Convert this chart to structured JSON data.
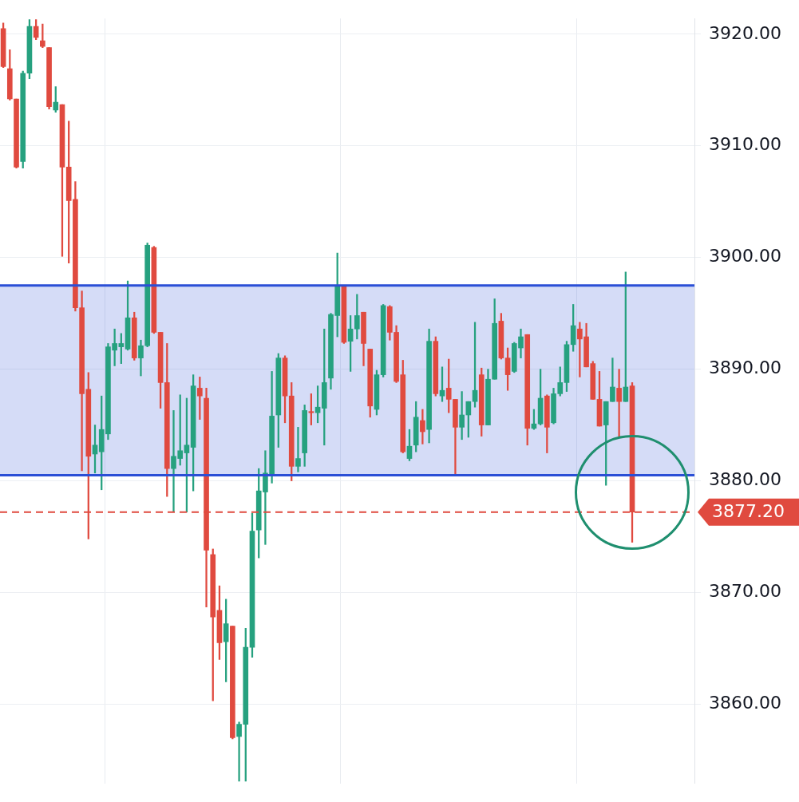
{
  "chart_data": {
    "type": "candlestick",
    "categories": [
      null,
      null,
      null,
      null,
      null,
      null,
      null,
      null,
      null,
      null,
      null,
      null,
      null,
      null,
      null,
      null,
      null,
      null,
      null,
      null,
      null,
      null,
      null,
      null,
      null,
      null,
      null,
      null,
      null,
      null,
      null,
      null,
      null,
      null,
      null,
      null,
      null,
      null,
      null,
      null,
      null,
      null,
      null,
      null,
      null,
      null,
      null,
      null,
      null,
      null,
      null,
      null,
      null,
      null,
      null,
      null,
      null,
      null,
      null,
      null,
      null,
      null,
      null,
      null,
      null,
      null,
      null,
      null,
      null,
      null,
      null,
      null,
      null,
      null,
      null,
      null,
      null,
      null,
      null,
      null,
      null,
      null,
      null,
      null,
      null,
      null,
      null,
      null,
      null,
      null,
      null,
      null,
      null,
      null,
      null,
      null,
      null,
      null,
      null,
      null,
      null,
      null,
      null,
      null,
      null,
      null
    ],
    "ohlc": [
      [
        3920.5,
        3921.0,
        3917.0,
        3917.1
      ],
      [
        3916.9,
        3918.6,
        3914.1,
        3914.2
      ],
      [
        3914.2,
        3914.2,
        3908.0,
        3908.1
      ],
      [
        3908.6,
        3916.7,
        3908.0,
        3916.5
      ],
      [
        3916.5,
        3921.3,
        3916.0,
        3920.7
      ],
      [
        3920.7,
        3921.3,
        3919.5,
        3919.7
      ],
      [
        3919.4,
        3920.9,
        3918.8,
        3918.9
      ],
      [
        3918.8,
        3918.8,
        3913.3,
        3913.5
      ],
      [
        3913.2,
        3915.3,
        3913.0,
        3913.9
      ],
      [
        3913.7,
        3913.7,
        3900.1,
        3908.1
      ],
      [
        3908.1,
        3912.2,
        3899.5,
        3905.1
      ],
      [
        3905.2,
        3906.8,
        3895.2,
        3895.5
      ],
      [
        3895.5,
        3897.0,
        3880.9,
        3887.8
      ],
      [
        3888.2,
        3889.7,
        3874.8,
        3882.2
      ],
      [
        3882.4,
        3885.0,
        3880.7,
        3883.2
      ],
      [
        3882.6,
        3887.6,
        3879.2,
        3884.6
      ],
      [
        3884.2,
        3892.3,
        3883.7,
        3892.0
      ],
      [
        3891.7,
        3893.6,
        3890.3,
        3892.3
      ],
      [
        3892.0,
        3893.2,
        3890.5,
        3892.3
      ],
      [
        3891.8,
        3897.9,
        3891.7,
        3894.6
      ],
      [
        3894.6,
        3895.1,
        3890.8,
        3891.0
      ],
      [
        3891.0,
        3892.6,
        3889.4,
        3892.1
      ],
      [
        3892.1,
        3901.3,
        3892.0,
        3901.1
      ],
      [
        3900.9,
        3901.0,
        3893.2,
        3893.3
      ],
      [
        3893.3,
        3893.3,
        3886.5,
        3888.8
      ],
      [
        3888.8,
        3892.3,
        3878.6,
        3881.1
      ],
      [
        3881.1,
        3886.3,
        3877.2,
        3882.2
      ],
      [
        3882.0,
        3887.7,
        3881.4,
        3882.7
      ],
      [
        3882.5,
        3887.4,
        3877.2,
        3883.2
      ],
      [
        3883.0,
        3889.5,
        3879.1,
        3888.5
      ],
      [
        3888.3,
        3889.3,
        3885.5,
        3887.6
      ],
      [
        3887.4,
        3888.3,
        3868.7,
        3873.8
      ],
      [
        3873.4,
        3873.9,
        3860.3,
        3867.8
      ],
      [
        3868.4,
        3870.6,
        3864.0,
        3865.5
      ],
      [
        3865.6,
        3869.4,
        3862.0,
        3867.2
      ],
      [
        3867.0,
        3867.0,
        3856.9,
        3857.0
      ],
      [
        3857.1,
        3858.4,
        3853.1,
        3858.2
      ],
      [
        3858.2,
        3866.8,
        3853.1,
        3865.1
      ],
      [
        3865.1,
        3877.1,
        3864.2,
        3875.5
      ],
      [
        3875.6,
        3881.1,
        3873.1,
        3879.1
      ],
      [
        3879.0,
        3882.7,
        3874.3,
        3880.7
      ],
      [
        3880.5,
        3889.8,
        3879.8,
        3885.8
      ],
      [
        3885.9,
        3891.4,
        3883.0,
        3891.0
      ],
      [
        3891.0,
        3891.2,
        3885.2,
        3887.6
      ],
      [
        3887.6,
        3888.8,
        3880.0,
        3881.3
      ],
      [
        3881.3,
        3884.8,
        3880.8,
        3882.0
      ],
      [
        3882.5,
        3886.8,
        3881.3,
        3886.3
      ],
      [
        3886.2,
        3887.8,
        3885.0,
        3886.1
      ],
      [
        3886.1,
        3888.5,
        3885.2,
        3886.6
      ],
      [
        3886.5,
        3893.6,
        3883.2,
        3888.8
      ],
      [
        3889.2,
        3895.0,
        3888.2,
        3894.9
      ],
      [
        3894.8,
        3900.4,
        3892.9,
        3897.5
      ],
      [
        3897.4,
        3897.5,
        3892.3,
        3892.4
      ],
      [
        3892.5,
        3894.8,
        3889.8,
        3893.6
      ],
      [
        3893.6,
        3896.7,
        3892.7,
        3894.8
      ],
      [
        3895.1,
        3895.1,
        3890.3,
        3892.3
      ],
      [
        3891.8,
        3891.8,
        3885.7,
        3886.7
      ],
      [
        3886.4,
        3889.9,
        3885.9,
        3889.5
      ],
      [
        3889.5,
        3895.8,
        3889.3,
        3895.7
      ],
      [
        3895.6,
        3895.7,
        3892.6,
        3893.3
      ],
      [
        3893.3,
        3893.9,
        3888.8,
        3888.9
      ],
      [
        3889.5,
        3890.8,
        3882.5,
        3882.6
      ],
      [
        3882.0,
        3884.6,
        3881.8,
        3883.1
      ],
      [
        3883.2,
        3887.1,
        3882.6,
        3885.7
      ],
      [
        3885.4,
        3886.4,
        3883.3,
        3884.4
      ],
      [
        3884.6,
        3893.6,
        3883.4,
        3892.5
      ],
      [
        3892.5,
        3892.9,
        3887.6,
        3887.8
      ],
      [
        3887.6,
        3890.2,
        3887.1,
        3888.1
      ],
      [
        3888.3,
        3890.9,
        3886.1,
        3887.3
      ],
      [
        3887.3,
        3887.3,
        3880.6,
        3884.8
      ],
      [
        3884.8,
        3888.0,
        3883.7,
        3885.9
      ],
      [
        3885.9,
        3887.1,
        3883.9,
        3887.1
      ],
      [
        3887.1,
        3894.2,
        3886.6,
        3888.1
      ],
      [
        3889.5,
        3890.1,
        3884.0,
        3885.0
      ],
      [
        3885.0,
        3890.0,
        3885.0,
        3889.1
      ],
      [
        3889.1,
        3896.3,
        3889.1,
        3894.1
      ],
      [
        3894.3,
        3895.0,
        3890.9,
        3891.0
      ],
      [
        3891.0,
        3891.9,
        3888.1,
        3889.5
      ],
      [
        3889.8,
        3892.4,
        3889.7,
        3892.3
      ],
      [
        3891.9,
        3893.6,
        3891.0,
        3892.9
      ],
      [
        3893.1,
        3893.1,
        3883.2,
        3884.7
      ],
      [
        3884.7,
        3886.4,
        3884.6,
        3885.1
      ],
      [
        3885.1,
        3890.0,
        3885.0,
        3887.4
      ],
      [
        3887.6,
        3887.7,
        3882.5,
        3884.8
      ],
      [
        3885.2,
        3888.3,
        3885.1,
        3887.8
      ],
      [
        3887.8,
        3890.2,
        3887.6,
        3888.8
      ],
      [
        3888.8,
        3892.5,
        3888.0,
        3892.2
      ],
      [
        3892.2,
        3895.8,
        3891.6,
        3893.9
      ],
      [
        3893.6,
        3894.2,
        3889.3,
        3892.7
      ],
      [
        3892.9,
        3894.1,
        3890.2,
        3890.2
      ],
      [
        3890.5,
        3890.7,
        3887.3,
        3887.3
      ],
      [
        3887.3,
        3889.8,
        3884.9,
        3884.9
      ],
      [
        3885.0,
        3887.1,
        3879.6,
        3887.1
      ],
      [
        3887.1,
        3891.0,
        3887.1,
        3888.4
      ],
      [
        3888.3,
        3890.0,
        3883.9,
        3887.1
      ],
      [
        3887.1,
        3898.7,
        3887.1,
        3888.4
      ],
      [
        3888.5,
        3888.8,
        3874.5,
        3877.2
      ],
      null,
      null,
      null,
      null,
      null,
      null,
      null,
      null,
      null
    ],
    "colors": [
      "#e04a3f",
      "#e04a3f",
      "#e04a3f",
      "#26a17f",
      "#26a17f",
      "#e04a3f",
      "#e04a3f",
      "#e04a3f",
      "#26a17f",
      "#e04a3f",
      "#e04a3f",
      "#e04a3f",
      "#e04a3f",
      "#e04a3f",
      "#26a17f",
      "#26a17f",
      "#26a17f",
      "#26a17f",
      "#26a17f",
      "#26a17f",
      "#e04a3f",
      "#26a17f",
      "#26a17f",
      "#e04a3f",
      "#e04a3f",
      "#e04a3f",
      "#26a17f",
      "#26a17f",
      "#26a17f",
      "#26a17f",
      "#e04a3f",
      "#e04a3f",
      "#e04a3f",
      "#e04a3f",
      "#26a17f",
      "#e04a3f",
      "#26a17f",
      "#26a17f",
      "#26a17f",
      "#26a17f",
      "#26a17f",
      "#26a17f",
      "#26a17f",
      "#e04a3f",
      "#e04a3f",
      "#26a17f",
      "#26a17f",
      "#e04a3f",
      "#26a17f",
      "#26a17f",
      "#26a17f",
      "#26a17f",
      "#e04a3f",
      "#26a17f",
      "#26a17f",
      "#e04a3f",
      "#e04a3f",
      "#26a17f",
      "#26a17f",
      "#e04a3f",
      "#e04a3f",
      "#e04a3f",
      "#26a17f",
      "#26a17f",
      "#e04a3f",
      "#26a17f",
      "#e04a3f",
      "#26a17f",
      "#e04a3f",
      "#e04a3f",
      "#26a17f",
      "#26a17f",
      "#26a17f",
      "#e04a3f",
      "#26a17f",
      "#26a17f",
      "#e04a3f",
      "#e04a3f",
      "#26a17f",
      "#26a17f",
      "#e04a3f",
      "#26a17f",
      "#26a17f",
      "#e04a3f",
      "#26a17f",
      "#26a17f",
      "#26a17f",
      "#26a17f",
      "#e04a3f",
      "#e04a3f",
      "#e04a3f",
      "#e04a3f",
      "#26a17f",
      "#26a17f",
      "#e04a3f",
      "#26a17f",
      "#e04a3f",
      null,
      null,
      null,
      null,
      null,
      null,
      null,
      null,
      null
    ],
    "ylim": [
      3852.9,
      3921.4
    ],
    "yticks": [
      {
        "value": 3860,
        "label": "3860.00"
      },
      {
        "value": 3870,
        "label": "3870.00"
      },
      {
        "value": 3880,
        "label": "3880.00"
      },
      {
        "value": 3890,
        "label": "3890.00"
      },
      {
        "value": 3900,
        "label": "3900.00"
      },
      {
        "value": 3910,
        "label": "3910.00"
      },
      {
        "value": 3920,
        "label": "3920.00"
      }
    ],
    "grid": true,
    "tick_labels": "y",
    "ref_lines": [
      {
        "axis": "y",
        "value": 3877.2,
        "label": "3877.20",
        "color": "#e04a3f",
        "line_style": "dashed"
      },
      {
        "axis": "y",
        "value": 3897.5,
        "color": "#2b4fd6",
        "line_style": "solid"
      },
      {
        "axis": "y",
        "value": 3880.5,
        "color": "#2b4fd6",
        "line_style": "solid"
      }
    ],
    "bands": [
      {
        "axis": "y",
        "from": 3880.5,
        "to": 3897.5,
        "color": "#2b4fd6"
      }
    ]
  }
}
